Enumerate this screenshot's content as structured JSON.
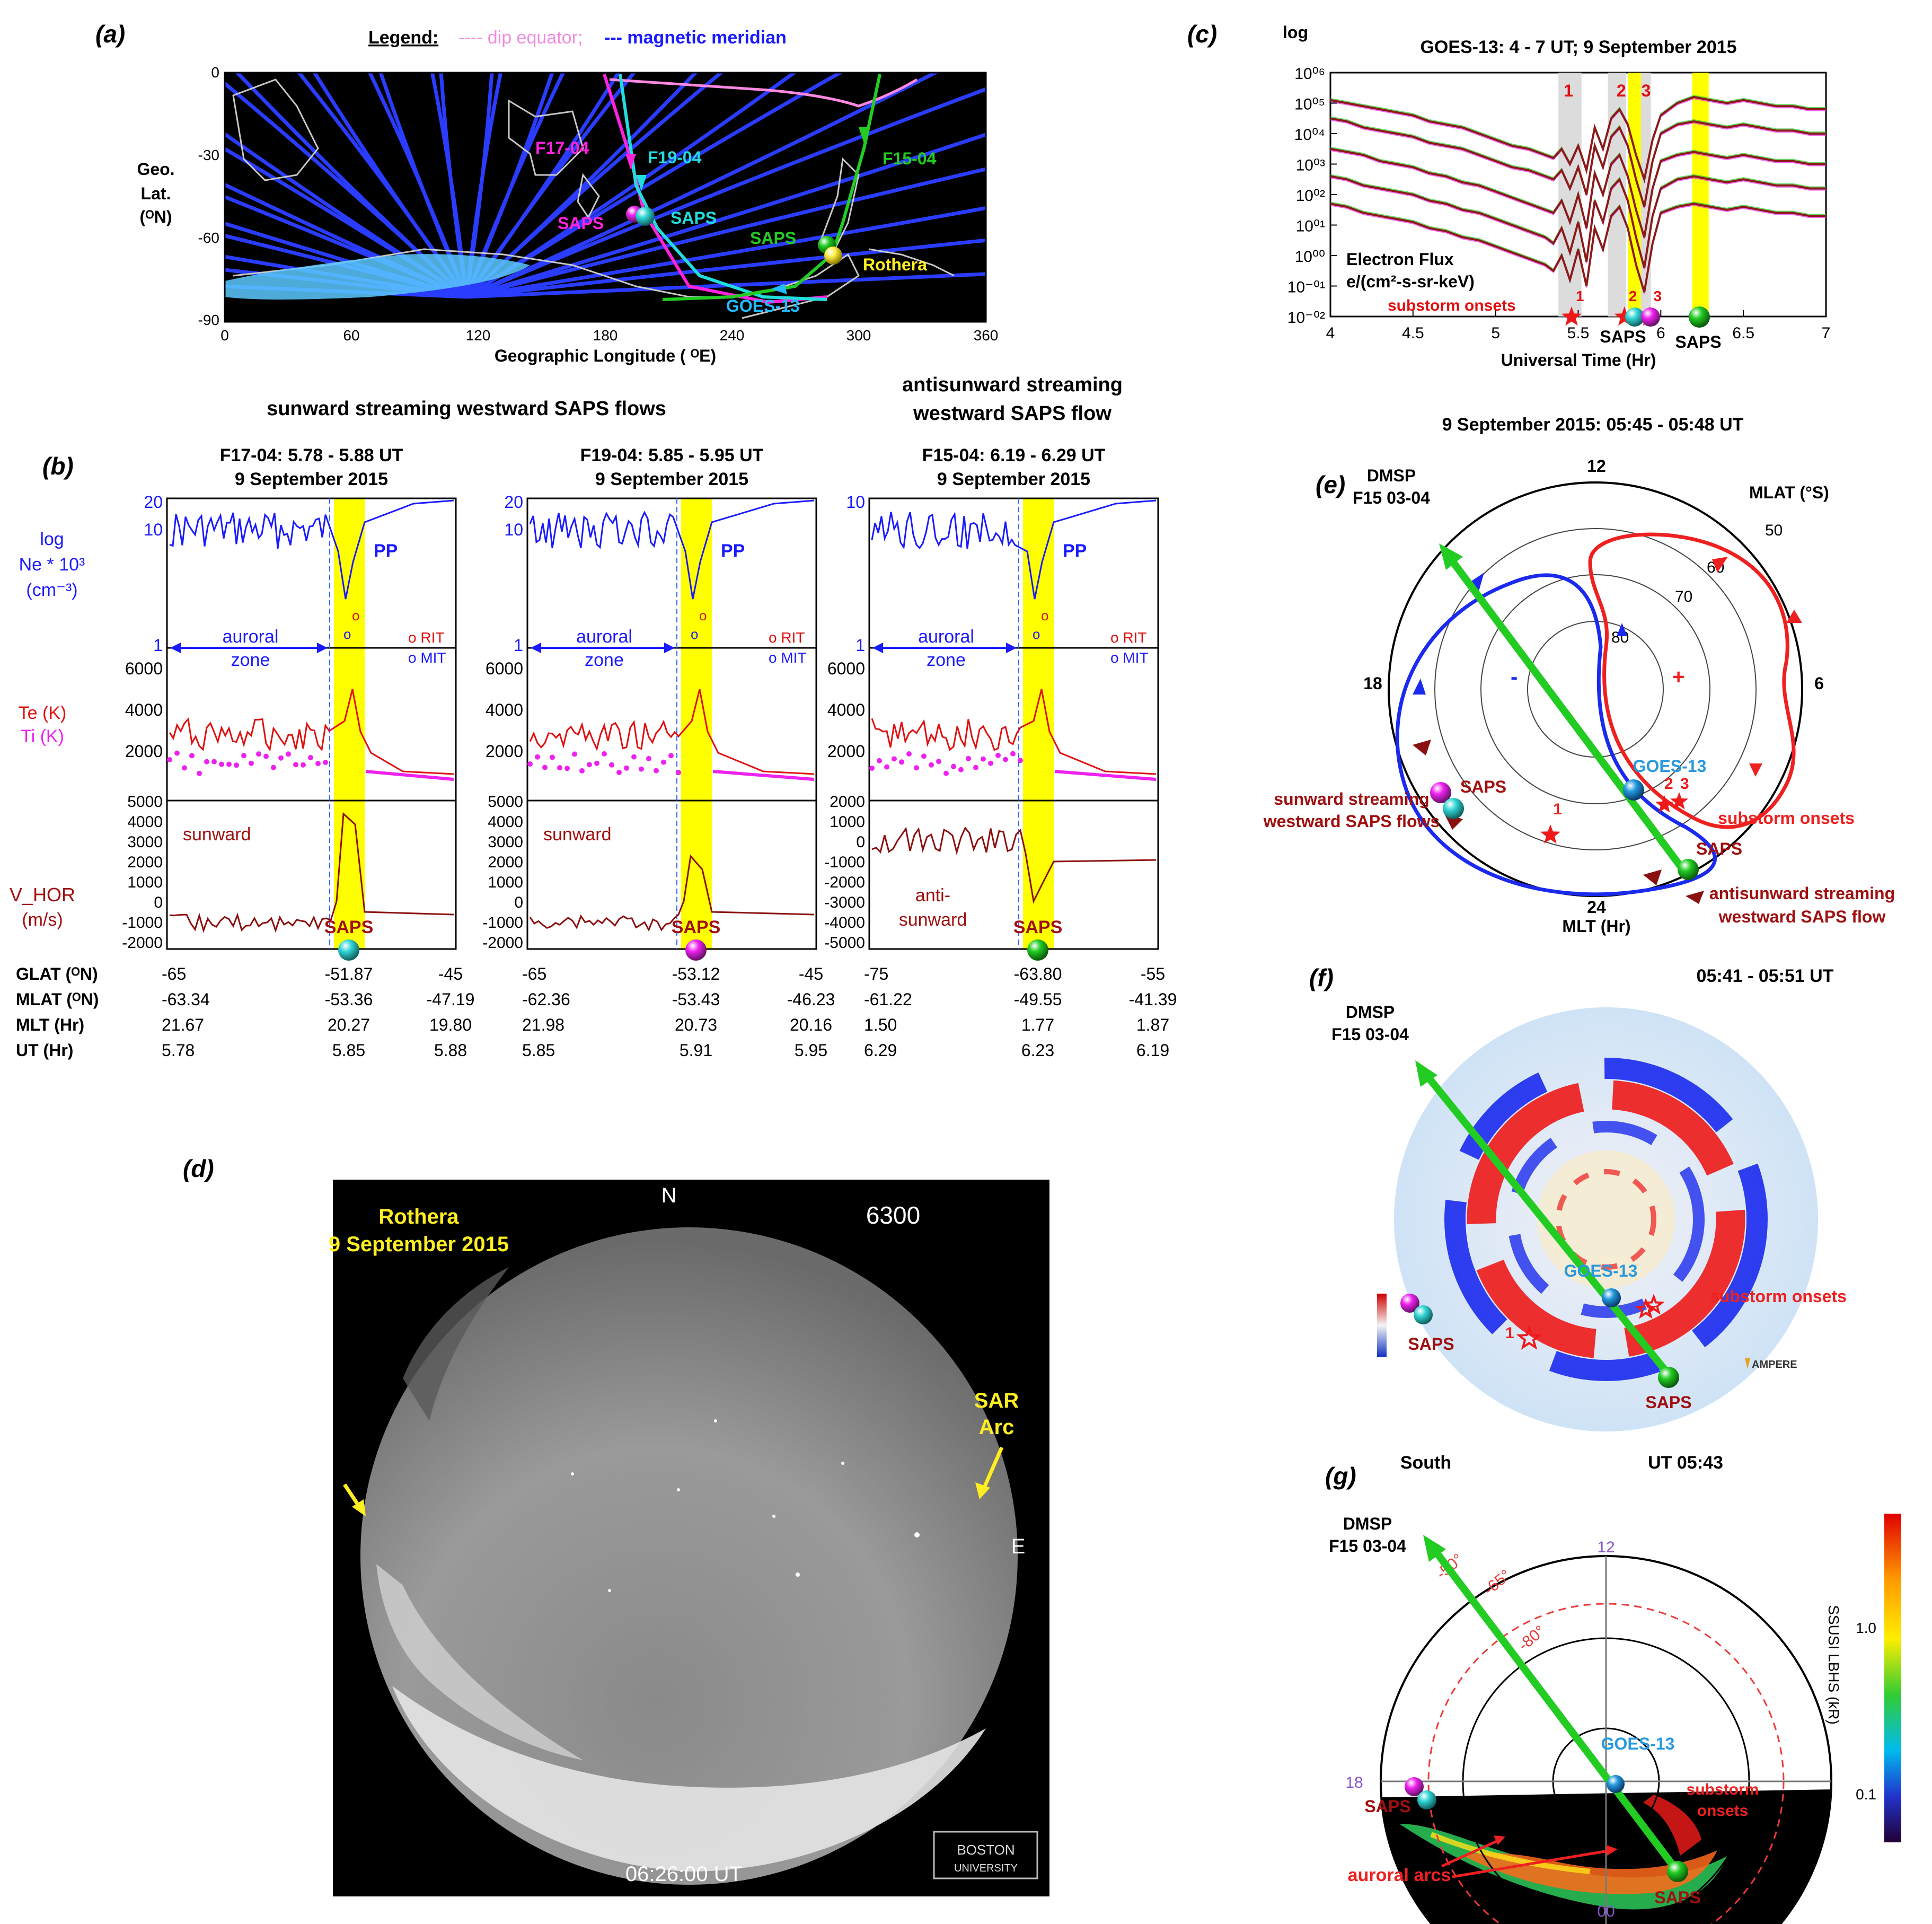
{
  "panel_a": {
    "letter": "(a)",
    "legend_title": "Legend:",
    "legend_dip": "---- dip equator;",
    "legend_meridian": "--- magnetic meridian",
    "yticks": [
      "0",
      "-30",
      "-60",
      "-90"
    ],
    "ylabel": [
      "Geo.",
      "Lat.",
      "(ᴼN)"
    ],
    "xticks": [
      "0",
      "60",
      "120",
      "180",
      "240",
      "300",
      "360"
    ],
    "xlabel": "Geographic Longitude ( ᴼE)",
    "labels": {
      "f17": "F17-04",
      "f19": "F19-04",
      "f15": "F15-04",
      "saps": "SAPS",
      "rothera": "Rothera",
      "goes": "GOES-13"
    }
  },
  "panel_b": {
    "letter": "(b)",
    "heading_left": "sunward streaming westward SAPS flows",
    "heading_right": [
      "antisunward streaming",
      "westward SAPS flow"
    ],
    "ylabels": {
      "ne": [
        "log",
        "Ne * 10³",
        "(cm⁻³)"
      ],
      "te": "Te (K)",
      "ti": "Ti (K)",
      "vhor": "V_HOR",
      "vhor_unit": "(m/s)"
    },
    "row_labels": [
      "GLAT (ᴼN)",
      "MLAT (ᴼN)",
      "MLT (Hr)",
      "UT (Hr)"
    ],
    "texts": {
      "auroral": "auroral",
      "zone": "zone",
      "pp": "PP",
      "rit": "ο RIT",
      "mit": "ο MIT",
      "o": "o",
      "saps": "SAPS",
      "sunward": "sunward",
      "anti": "anti-",
      "antisunward": "sunward"
    },
    "panels": [
      {
        "title": "F17-04: 5.78 - 5.88 UT",
        "date": "9 September 2015",
        "ne_ticks": [
          "20",
          "10",
          "1"
        ],
        "t_ticks": [
          "6000",
          "4000",
          "2000"
        ],
        "v_ticks": [
          "5000",
          "4000",
          "3000",
          "2000",
          "1000",
          "0",
          "-1000",
          "-2000"
        ],
        "glat": [
          "-65",
          "-51.87",
          "-45"
        ],
        "mlat": [
          "-63.34",
          "-53.36",
          "-47.19"
        ],
        "mlt": [
          "21.67",
          "20.27",
          "19.80"
        ],
        "ut": [
          "5.78",
          "5.85",
          "5.88"
        ],
        "ball": "cyan",
        "flow": "sunward"
      },
      {
        "title": "F19-04: 5.85 - 5.95 UT",
        "date": "9 September 2015",
        "ne_ticks": [
          "20",
          "10",
          "1"
        ],
        "t_ticks": [
          "6000",
          "4000",
          "2000"
        ],
        "v_ticks": [
          "5000",
          "4000",
          "3000",
          "2000",
          "1000",
          "0",
          "-1000",
          "-2000"
        ],
        "glat": [
          "-65",
          "-53.12",
          "-45"
        ],
        "mlat": [
          "-62.36",
          "-53.43",
          "-46.23"
        ],
        "mlt": [
          "21.98",
          "20.73",
          "20.16"
        ],
        "ut": [
          "5.85",
          "5.91",
          "5.95"
        ],
        "ball": "magenta",
        "flow": "sunward"
      },
      {
        "title": "F15-04: 6.19 - 6.29 UT",
        "date": "9 September 2015",
        "ne_ticks": [
          "10",
          "",
          "1"
        ],
        "t_ticks": [
          "6000",
          "4000",
          "2000"
        ],
        "v_ticks": [
          "2000",
          "1000",
          "0",
          "-1000",
          "-2000",
          "-3000",
          "-4000",
          "-5000"
        ],
        "glat": [
          "-75",
          "-63.80",
          "-55"
        ],
        "mlat": [
          "-61.22",
          "-49.55",
          "-41.39"
        ],
        "mlt": [
          "1.50",
          "1.77",
          "1.87"
        ],
        "ut": [
          "6.29",
          "6.23",
          "6.19"
        ],
        "ball": "green",
        "flow": "antisunward"
      }
    ]
  },
  "panel_c": {
    "letter": "(c)",
    "title": "GOES-13: 4 - 7 UT; 9 September 2015",
    "ylog": "log",
    "yticks": [
      "10⁰⁶",
      "10⁰⁵",
      "10⁰⁴",
      "10⁰³",
      "10⁰²",
      "10⁰¹",
      "10⁰⁰",
      "10⁻⁰¹",
      "10⁻⁰²"
    ],
    "xticks": [
      "4",
      "4.5",
      "5",
      "5.5",
      "6",
      "6.5",
      "7"
    ],
    "xlabel": "Universal Time (Hr)",
    "flux_label": [
      "Electron Flux",
      "e/(cm²-s-sr-keV)"
    ],
    "substorm_label": "substorm onsets",
    "onset_numbers": [
      "1",
      "2",
      "3"
    ],
    "saps_label": "SAPS",
    "chart_data": {
      "type": "line",
      "x_range": [
        4,
        7
      ],
      "y_range_log10": [
        -2,
        6
      ],
      "onset_times": [
        5.46,
        5.78,
        5.93
      ],
      "grey_bands": [
        [
          5.38,
          5.52
        ],
        [
          5.68,
          5.79
        ],
        [
          5.88,
          5.94
        ]
      ],
      "yellow_bands": [
        [
          5.8,
          5.88
        ],
        [
          6.19,
          6.29
        ]
      ],
      "saps_times": [
        5.85,
        5.91,
        6.23
      ],
      "x": [
        4.0,
        4.1,
        4.2,
        4.3,
        4.4,
        4.5,
        4.6,
        4.7,
        4.8,
        4.9,
        5.0,
        5.1,
        5.2,
        5.3,
        5.35,
        5.4,
        5.45,
        5.5,
        5.55,
        5.6,
        5.65,
        5.7,
        5.75,
        5.8,
        5.85,
        5.9,
        5.95,
        6.0,
        6.1,
        6.2,
        6.3,
        6.4,
        6.5,
        6.6,
        6.7,
        6.8,
        6.9,
        7.0
      ],
      "series": [
        {
          "name": "ch1",
          "color": "#8b1a1a",
          "values": [
            5.1,
            5.0,
            4.9,
            4.8,
            4.7,
            4.6,
            4.4,
            4.3,
            4.2,
            4.0,
            3.8,
            3.6,
            3.5,
            3.3,
            3.2,
            3.5,
            3.0,
            3.6,
            2.8,
            4.2,
            3.5,
            4.5,
            4.8,
            4.3,
            3.3,
            2.5,
            3.8,
            4.6,
            5.0,
            5.2,
            5.1,
            5.0,
            5.1,
            5.0,
            4.9,
            4.9,
            4.8,
            4.8
          ]
        },
        {
          "name": "ch2",
          "color": "#8b1a1a",
          "values": [
            4.5,
            4.4,
            4.2,
            4.1,
            4.0,
            3.9,
            3.7,
            3.6,
            3.5,
            3.3,
            3.1,
            2.9,
            2.8,
            2.6,
            2.5,
            2.8,
            2.2,
            2.9,
            2.0,
            3.6,
            2.9,
            3.9,
            4.2,
            3.6,
            2.5,
            1.6,
            3.1,
            4.0,
            4.3,
            4.4,
            4.3,
            4.2,
            4.3,
            4.2,
            4.1,
            4.1,
            4.0,
            4.0
          ]
        },
        {
          "name": "ch3",
          "color": "#8b1a1a",
          "values": [
            3.5,
            3.4,
            3.3,
            3.1,
            3.0,
            2.9,
            2.7,
            2.6,
            2.4,
            2.3,
            2.1,
            1.9,
            1.7,
            1.5,
            1.4,
            1.8,
            1.1,
            2.0,
            0.9,
            2.7,
            2.0,
            3.0,
            3.3,
            2.6,
            1.5,
            0.6,
            2.2,
            3.1,
            3.3,
            3.4,
            3.3,
            3.2,
            3.3,
            3.2,
            3.1,
            3.1,
            3.0,
            3.0
          ]
        },
        {
          "name": "ch4",
          "color": "#8b1a1a",
          "values": [
            2.6,
            2.5,
            2.3,
            2.2,
            2.1,
            2.0,
            1.8,
            1.7,
            1.5,
            1.4,
            1.2,
            1.0,
            0.8,
            0.6,
            0.4,
            0.9,
            0.1,
            1.1,
            -0.2,
            1.8,
            1.1,
            2.2,
            2.5,
            1.8,
            0.6,
            -0.4,
            1.3,
            2.2,
            2.5,
            2.6,
            2.5,
            2.4,
            2.5,
            2.4,
            2.3,
            2.3,
            2.2,
            2.2
          ]
        },
        {
          "name": "ch5",
          "color": "#8b1a1a",
          "values": [
            1.7,
            1.6,
            1.4,
            1.3,
            1.2,
            1.1,
            0.9,
            0.8,
            0.6,
            0.5,
            0.3,
            0.1,
            -0.1,
            -0.3,
            -0.5,
            0.0,
            -0.8,
            0.2,
            -1.0,
            0.9,
            0.2,
            1.3,
            1.6,
            0.9,
            -0.3,
            -1.2,
            0.4,
            1.4,
            1.6,
            1.7,
            1.6,
            1.5,
            1.6,
            1.5,
            1.4,
            1.4,
            1.3,
            1.3
          ]
        }
      ]
    }
  },
  "panel_d": {
    "letter": "(d)",
    "site": "Rothera",
    "date": "9 September 2015",
    "north": "N",
    "wavelength": "6300",
    "east": "E",
    "sar_arc": [
      "SAR",
      "Arc"
    ],
    "time": "06:26:00 UT",
    "logo": [
      "BOSTON",
      "UNIVERSITY"
    ]
  },
  "panel_e": {
    "letter": "(e)",
    "date": "9 September 2015: 05:45 - 05:48 UT",
    "mlt_labels": [
      "12",
      "18",
      "6",
      "24"
    ],
    "mlt_title": "MLT (Hr)",
    "mlat_title": "MLAT (°S)",
    "lat_labels": [
      "50",
      "60",
      "70",
      "80"
    ],
    "dmsp": [
      "DMSP",
      "F15 03-04"
    ],
    "minus": "-",
    "plus": "+",
    "saps": "SAPS",
    "goes": "GOES-13",
    "onset_nums": [
      "1",
      "2",
      "3"
    ],
    "sunward": [
      "sunward streaming",
      "westward SAPS flows"
    ],
    "substorm": "substorm onsets",
    "antisunward": [
      "antisunward streaming",
      "westward SAPS flow"
    ]
  },
  "panel_f": {
    "letter": "(f)",
    "time": "05:41 - 05:51 UT",
    "dmsp": [
      "DMSP",
      "F15 03-04"
    ],
    "saps": "SAPS",
    "goes": "GOES-13",
    "substorm": "substorm onsets",
    "onset_num": "1",
    "logo": "AMPERE"
  },
  "panel_g": {
    "letter": "(g)",
    "hemisphere": "South",
    "time": "UT 05:43",
    "dmsp": [
      "DMSP",
      "F15 03-04"
    ],
    "mlt_labels": [
      "12",
      "18",
      "00"
    ],
    "lat_labels": [
      "-50°",
      "-65°",
      "-80°"
    ],
    "saps": "SAPS",
    "goes": "GOES-13",
    "substorm": [
      "substorm",
      "onsets"
    ],
    "auroral_arcs": "auroral arcs",
    "cbar_ticks": [
      "1.0",
      "0.1"
    ],
    "cbar_label": "SSUSI LBHS (kR)"
  },
  "colors": {
    "cyan": "#22dddd",
    "magenta": "#ee22ee",
    "green": "#22cc22",
    "blue": "#1a1aff",
    "red": "#e01010",
    "darkred": "#a01010",
    "yellow": "#ffee22"
  }
}
